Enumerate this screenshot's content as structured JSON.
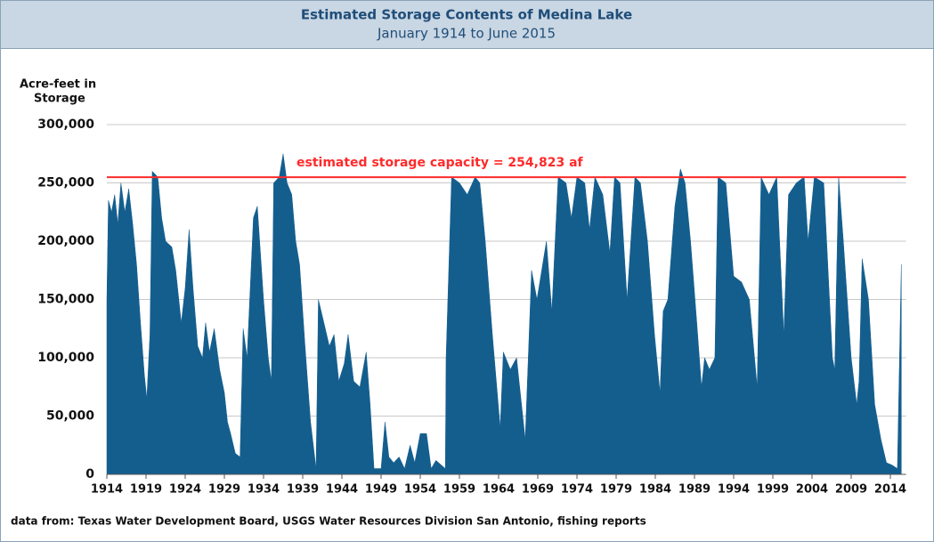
{
  "chart_data": {
    "type": "area",
    "title": "Estimated Storage Contents of Medina Lake",
    "subtitle": "January 1914 to June 2015",
    "y_label": [
      "Acre-feet in",
      "Storage"
    ],
    "source": "data from:  Texas Water Development Board, USGS Water Resources Division San Antonio, fishing reports",
    "annotation": "estimated storage capacity = 254,823 af",
    "capacity": 254823,
    "capacity_color": "#ff2a2a",
    "color": "#145e8e",
    "grid": true,
    "xlim": [
      1914,
      2016
    ],
    "xticks": [
      1914,
      1919,
      1924,
      1929,
      1934,
      1939,
      1944,
      1949,
      1954,
      1959,
      1964,
      1969,
      1974,
      1979,
      1984,
      1989,
      1994,
      1999,
      2004,
      2009,
      2014
    ],
    "ylim": [
      0,
      300000
    ],
    "yticks": [
      0,
      {
        "value": 50000,
        "label": "50,000"
      },
      {
        "value": 100000,
        "label": "100,000"
      },
      {
        "value": 150000,
        "label": "150,000"
      },
      {
        "value": 200000,
        "label": "200,000"
      },
      {
        "value": 250000,
        "label": "250,000"
      },
      {
        "value": 300000,
        "label": "300,000"
      }
    ],
    "x": [
      1914.0,
      1914.2,
      1914.6,
      1915.0,
      1915.4,
      1915.8,
      1916.3,
      1916.8,
      1917.3,
      1917.8,
      1918.3,
      1918.8,
      1919.1,
      1919.5,
      1919.8,
      1920.5,
      1921.0,
      1921.5,
      1922.3,
      1922.8,
      1923.5,
      1924.0,
      1924.5,
      1925.0,
      1925.6,
      1926.2,
      1926.6,
      1927.1,
      1927.7,
      1928.4,
      1929.0,
      1929.4,
      1929.8,
      1930.4,
      1931.0,
      1931.4,
      1931.9,
      1932.7,
      1933.2,
      1934.0,
      1934.6,
      1935.0,
      1935.3,
      1936.0,
      1936.5,
      1937.0,
      1937.6,
      1938.1,
      1938.6,
      1939.3,
      1940.0,
      1940.7,
      1941.0,
      1941.7,
      1942.4,
      1943.0,
      1943.6,
      1944.3,
      1944.8,
      1945.5,
      1946.3,
      1947.1,
      1947.6,
      1948.1,
      1949.0,
      1949.5,
      1950.0,
      1950.6,
      1951.3,
      1952.0,
      1952.7,
      1953.3,
      1954.0,
      1954.8,
      1955.4,
      1956.0,
      1957.2,
      1957.3,
      1958.0,
      1959.0,
      1960.0,
      1961.0,
      1961.6,
      1962.3,
      1963.2,
      1964.2,
      1964.6,
      1965.5,
      1966.3,
      1967.4,
      1968.2,
      1968.9,
      1970.1,
      1970.8,
      1971.6,
      1972.6,
      1973.3,
      1974.0,
      1975.0,
      1975.6,
      1976.3,
      1977.3,
      1978.2,
      1978.8,
      1979.5,
      1980.4,
      1981.4,
      1982.1,
      1983.0,
      1983.9,
      1984.6,
      1985.0,
      1985.6,
      1986.5,
      1987.2,
      1987.8,
      1988.5,
      1989.3,
      1989.9,
      1990.3,
      1990.9,
      1991.6,
      1992.0,
      1993.0,
      1994.0,
      1995.0,
      1996.0,
      1997.0,
      1997.5,
      1998.5,
      1999.5,
      2000.4,
      2001.0,
      2002.0,
      2003.0,
      2003.5,
      2004.3,
      2005.5,
      2006.6,
      2006.9,
      2007.4,
      2008.0,
      2009.0,
      2009.7,
      2010.0,
      2010.4,
      2011.2,
      2012.0,
      2012.8,
      2013.5,
      2014.2,
      2014.9,
      2015.4
    ],
    "values": [
      150000,
      235000,
      225000,
      240000,
      215000,
      250000,
      225000,
      245000,
      215000,
      180000,
      130000,
      85000,
      65000,
      120000,
      260000,
      255000,
      220000,
      200000,
      195000,
      175000,
      130000,
      160000,
      210000,
      160000,
      110000,
      100000,
      130000,
      105000,
      125000,
      90000,
      70000,
      45000,
      35000,
      18000,
      15000,
      125000,
      100000,
      220000,
      230000,
      150000,
      100000,
      80000,
      250000,
      255000,
      275000,
      250000,
      240000,
      200000,
      180000,
      110000,
      45000,
      5000,
      150000,
      130000,
      110000,
      120000,
      80000,
      95000,
      120000,
      80000,
      75000,
      105000,
      60000,
      5000,
      5000,
      45000,
      15000,
      10000,
      15000,
      5000,
      25000,
      10000,
      35000,
      35000,
      5000,
      12000,
      5000,
      100000,
      255000,
      250000,
      240000,
      255000,
      250000,
      200000,
      120000,
      40000,
      105000,
      90000,
      100000,
      30000,
      175000,
      150000,
      200000,
      140000,
      255000,
      250000,
      220000,
      255000,
      250000,
      210000,
      255000,
      240000,
      190000,
      255000,
      250000,
      150000,
      255000,
      250000,
      200000,
      120000,
      70000,
      140000,
      150000,
      230000,
      262000,
      250000,
      200000,
      130000,
      75000,
      100000,
      90000,
      100000,
      255000,
      250000,
      170000,
      165000,
      150000,
      75000,
      255000,
      240000,
      255000,
      120000,
      240000,
      250000,
      255000,
      200000,
      255000,
      250000,
      100000,
      90000,
      255000,
      200000,
      100000,
      60000,
      80000,
      185000,
      150000,
      60000,
      30000,
      10000,
      8000,
      5000,
      180000
    ]
  }
}
